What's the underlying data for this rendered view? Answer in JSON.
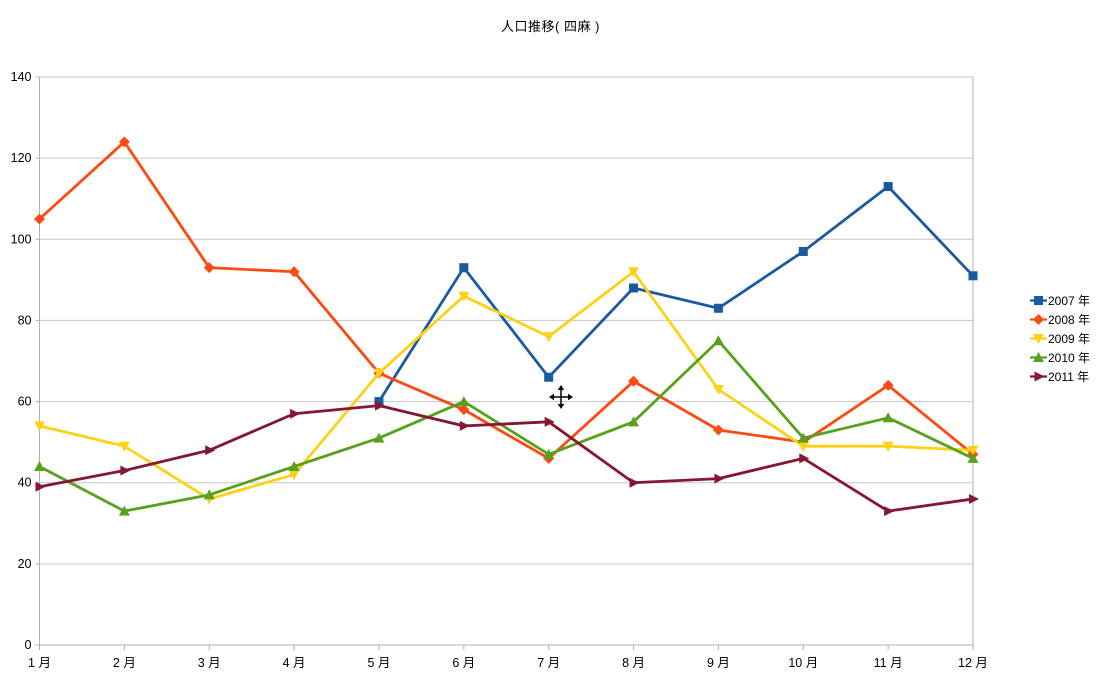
{
  "title": "人口推移( 四麻 )",
  "cursor_icon": "move-cursor",
  "colors": {
    "background": "#FFFFFF",
    "gridline": "#C6C6C6",
    "axis": "#B0B0B0",
    "text": "#000000"
  },
  "legend": {
    "position": "right",
    "items": [
      "2007 年",
      "2008 年",
      "2009 年",
      "2010 年",
      "2011 年"
    ]
  },
  "chart_data": {
    "type": "line",
    "title": "人口推移( 四麻 )",
    "xlabel": "",
    "ylabel": "",
    "ylim": [
      0,
      140
    ],
    "ytick_step": 20,
    "y_ticks": [
      "0",
      "20",
      "40",
      "60",
      "80",
      "100",
      "120",
      "140"
    ],
    "grid": "horizontal",
    "legend_position": "right",
    "categories": [
      "1 月",
      "2 月",
      "3 月",
      "4 月",
      "5 月",
      "6 月",
      "7 月",
      "8 月",
      "9 月",
      "10 月",
      "11 月",
      "12 月"
    ],
    "series": [
      {
        "name": "2007 年",
        "color": "#1C5AA0",
        "marker": "square",
        "values": [
          null,
          null,
          null,
          null,
          60,
          93,
          66,
          88,
          83,
          97,
          113,
          91
        ]
      },
      {
        "name": "2008 年",
        "color": "#FB4A14",
        "marker": "diamond",
        "values": [
          105,
          124,
          93,
          92,
          67,
          58,
          46,
          65,
          53,
          50,
          64,
          47
        ]
      },
      {
        "name": "2009 年",
        "color": "#FCD116",
        "marker": "triangle-down",
        "values": [
          54,
          49,
          36,
          42,
          67,
          86,
          76,
          92,
          63,
          49,
          49,
          48
        ]
      },
      {
        "name": "2010 年",
        "color": "#58A01E",
        "marker": "triangle-up",
        "values": [
          44,
          33,
          37,
          44,
          51,
          60,
          47,
          55,
          75,
          51,
          56,
          46
        ]
      },
      {
        "name": "2011 年",
        "color": "#841731",
        "marker": "triangle-right",
        "values": [
          39,
          43,
          48,
          57,
          59,
          54,
          55,
          40,
          41,
          46,
          33,
          36
        ]
      }
    ]
  }
}
